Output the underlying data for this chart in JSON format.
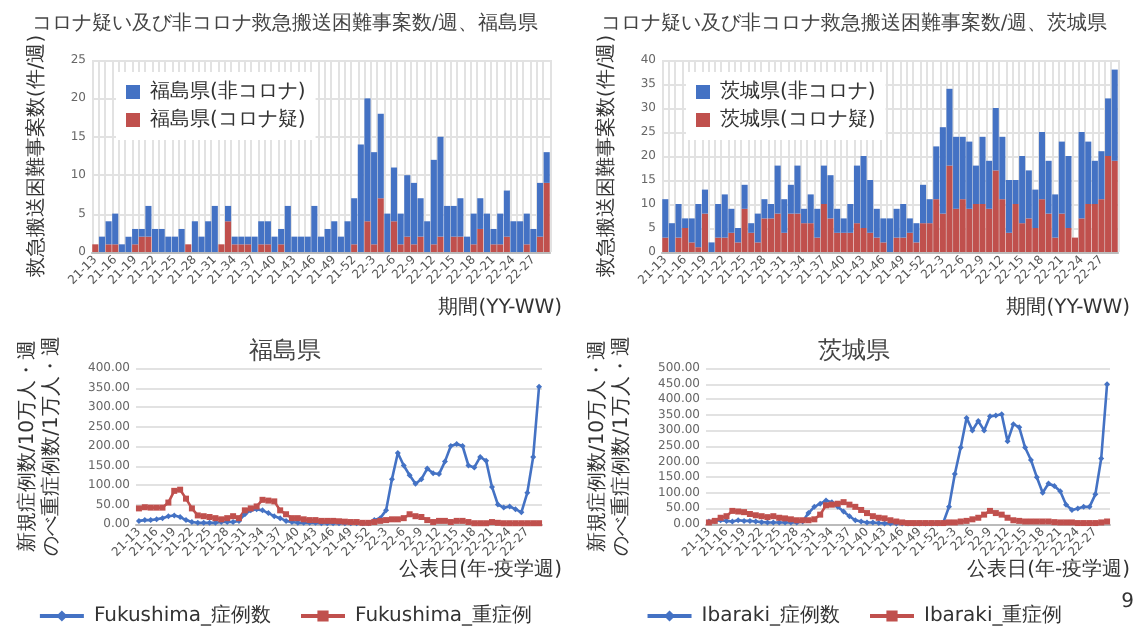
{
  "chart_data": [
    {
      "type": "bar",
      "title": "コロナ疑い及び非コロナ救急搬送困難事案数/週、福島県",
      "xlabel": "期間(YY-WW)",
      "ylabel": "救急搬送困難事案数(件/週)",
      "stacked": true,
      "grid": true,
      "legend": "top left",
      "categories": [
        "21-13",
        null,
        null,
        "21-16",
        null,
        null,
        "21-19",
        null,
        null,
        "21-22",
        null,
        null,
        "21-25",
        null,
        null,
        "21-28",
        null,
        null,
        "21-31",
        null,
        null,
        "21-34",
        null,
        null,
        "21-37",
        null,
        null,
        "21-40",
        null,
        null,
        "21-43",
        null,
        null,
        "21-46",
        null,
        null,
        "21-49",
        null,
        null,
        "21-52",
        null,
        null,
        "22-3",
        null,
        null,
        "22-6",
        null,
        null,
        "22-9",
        null,
        null,
        "22-12",
        null,
        null,
        "22-15",
        null,
        null,
        "22-18",
        null,
        null,
        "22-21",
        null,
        null,
        "22-24",
        null,
        null,
        "22-27",
        null,
        null
      ],
      "ylim": [
        0,
        25
      ],
      "yticks": [
        0,
        5,
        10,
        15,
        20,
        25
      ],
      "series": [
        {
          "name": "福島県(コロナ疑)",
          "color": "#c0504d",
          "values": [
            1,
            0,
            1,
            1,
            0,
            0,
            1,
            2,
            2,
            0,
            0,
            0,
            0,
            0,
            1,
            0,
            0,
            0,
            0,
            1,
            4,
            1,
            1,
            1,
            0,
            1,
            1,
            0,
            1,
            0,
            0,
            0,
            0,
            0,
            0,
            0,
            0,
            0,
            0,
            1,
            0,
            4,
            1,
            7,
            0,
            4,
            1,
            2,
            1,
            2,
            0,
            1,
            2,
            0,
            2,
            2,
            0,
            1,
            3,
            0,
            1,
            1,
            2,
            0,
            0,
            1,
            0,
            2,
            9
          ]
        },
        {
          "name": "福島県(非コロナ)",
          "color": "#4472c4",
          "values": [
            0,
            2,
            3,
            4,
            1,
            2,
            2,
            1,
            4,
            3,
            3,
            2,
            2,
            3,
            0,
            4,
            2,
            4,
            6,
            0,
            2,
            1,
            1,
            1,
            2,
            3,
            3,
            2,
            2,
            6,
            2,
            2,
            2,
            6,
            2,
            3,
            4,
            2,
            4,
            6,
            14,
            16,
            12,
            11,
            5,
            7,
            4,
            8,
            8,
            5,
            4,
            11,
            13,
            6,
            4,
            5,
            2,
            4,
            4,
            5,
            2,
            4,
            6,
            4,
            4,
            4,
            3,
            7,
            4
          ]
        }
      ]
    },
    {
      "type": "bar",
      "title": "コロナ疑い及び非コロナ救急搬送困難事案数/週、茨城県",
      "xlabel": "期間(YY-WW)",
      "ylabel": "救急搬送困難事案数(件/週)",
      "stacked": true,
      "grid": true,
      "legend": "top left",
      "categories": [
        "21-13",
        null,
        null,
        "21-16",
        null,
        null,
        "21-19",
        null,
        null,
        "21-22",
        null,
        null,
        "21-25",
        null,
        null,
        "21-28",
        null,
        null,
        "21-31",
        null,
        null,
        "21-34",
        null,
        null,
        "21-37",
        null,
        null,
        "21-40",
        null,
        null,
        "21-43",
        null,
        null,
        "21-46",
        null,
        null,
        "21-49",
        null,
        null,
        "21-52",
        null,
        null,
        "22-3",
        null,
        null,
        "22-6",
        null,
        null,
        "22-9",
        null,
        null,
        "22-12",
        null,
        null,
        "22-15",
        null,
        null,
        "22-18",
        null,
        null,
        "22-21",
        null,
        null,
        "22-24",
        null,
        null,
        "22-27",
        null,
        null
      ],
      "ylim": [
        0,
        40
      ],
      "yticks": [
        0,
        5,
        10,
        15,
        20,
        25,
        30,
        35,
        40
      ],
      "series": [
        {
          "name": "茨城県(コロナ疑)",
          "color": "#c0504d",
          "values": [
            3,
            0,
            3,
            5,
            2,
            1,
            8,
            0,
            3,
            3,
            4,
            2,
            9,
            4,
            2,
            7,
            7,
            8,
            4,
            8,
            8,
            6,
            6,
            3,
            10,
            7,
            4,
            4,
            4,
            6,
            5,
            4,
            3,
            2,
            0,
            3,
            3,
            4,
            2,
            6,
            6,
            11,
            8,
            18,
            9,
            11,
            9,
            10,
            10,
            9,
            17,
            11,
            4,
            10,
            6,
            7,
            5,
            11,
            8,
            3,
            8,
            5,
            3,
            7,
            10,
            10,
            11,
            20,
            19
          ]
        },
        {
          "name": "茨城県(非コロナ)",
          "color": "#4472c4",
          "values": [
            8,
            6,
            7,
            2,
            5,
            9,
            5,
            2,
            7,
            9,
            5,
            3,
            5,
            2,
            6,
            4,
            3,
            10,
            7,
            6,
            10,
            3,
            6,
            6,
            8,
            9,
            5,
            3,
            6,
            12,
            15,
            11,
            6,
            5,
            7,
            6,
            7,
            3,
            4,
            8,
            5,
            11,
            18,
            16,
            15,
            13,
            14,
            8,
            14,
            10,
            13,
            13,
            11,
            5,
            14,
            10,
            8,
            14,
            11,
            9,
            15,
            15,
            0,
            18,
            13,
            9,
            10,
            12,
            19
          ]
        }
      ]
    },
    {
      "type": "line",
      "title": "福島県",
      "xlabel": "公表日(年-疫学週)",
      "ylabel": "新規症例数/10万人・週のべ重症例数/1万人・週",
      "grid": "y",
      "legend": "bottom",
      "categories": [
        "21-13",
        null,
        null,
        "21-16",
        null,
        null,
        "21-19",
        null,
        null,
        "21-22",
        null,
        null,
        "21-25",
        null,
        null,
        "21-28",
        null,
        null,
        "21-31",
        null,
        null,
        "21-34",
        null,
        null,
        "21-37",
        null,
        null,
        "21-40",
        null,
        null,
        "21-43",
        null,
        null,
        "21-46",
        null,
        null,
        "21-49",
        null,
        null,
        "21-52",
        null,
        null,
        "22-3",
        null,
        null,
        "22-6",
        null,
        null,
        "22-9",
        null,
        null,
        "22-12",
        null,
        null,
        "22-15",
        null,
        null,
        "22-18",
        null,
        null,
        "22-21",
        null,
        null,
        "22-24",
        null,
        null,
        "22-27",
        null,
        null
      ],
      "ylim": [
        0,
        400
      ],
      "yticks": [
        {
          "value": 0,
          "label": "0.00"
        },
        {
          "value": 50,
          "label": "50.00"
        },
        {
          "value": 100,
          "label": "100.00"
        },
        {
          "value": 150,
          "label": "150.00"
        },
        {
          "value": 200,
          "label": "200.00"
        },
        {
          "value": 250,
          "label": "250.00"
        },
        {
          "value": 300,
          "label": "300.00"
        },
        {
          "value": 350,
          "label": "350.00"
        },
        {
          "value": 400,
          "label": "400.00"
        }
      ],
      "series": [
        {
          "name": "Fukushima_症例数",
          "color": "#4472c4",
          "marker": "diamond",
          "values": [
            8,
            10,
            10,
            12,
            15,
            20,
            22,
            18,
            10,
            5,
            3,
            3,
            3,
            3,
            5,
            5,
            5,
            8,
            25,
            35,
            38,
            35,
            28,
            20,
            15,
            8,
            5,
            3,
            3,
            3,
            3,
            2,
            2,
            2,
            2,
            2,
            2,
            2,
            2,
            2,
            10,
            15,
            35,
            115,
            182,
            150,
            125,
            103,
            115,
            142,
            130,
            128,
            160,
            200,
            205,
            200,
            150,
            145,
            172,
            162,
            95,
            50,
            42,
            45,
            38,
            30,
            80,
            172,
            352
          ]
        },
        {
          "name": "Fukushima_重症例",
          "color": "#c0504d",
          "marker": "square",
          "values": [
            40,
            43,
            42,
            42,
            42,
            55,
            85,
            88,
            65,
            40,
            22,
            20,
            18,
            15,
            12,
            15,
            20,
            15,
            35,
            40,
            45,
            62,
            60,
            58,
            35,
            25,
            15,
            15,
            12,
            10,
            10,
            8,
            8,
            8,
            7,
            6,
            5,
            5,
            3,
            3,
            5,
            8,
            10,
            12,
            12,
            15,
            25,
            20,
            18,
            10,
            5,
            8,
            8,
            5,
            8,
            8,
            5,
            2,
            2,
            2,
            5,
            3,
            2,
            2,
            2,
            2,
            2,
            2,
            2
          ]
        }
      ]
    },
    {
      "type": "line",
      "title": "茨城県",
      "xlabel": "公表日(年-疫学週)",
      "ylabel": "新規症例数/10万人・週のべ重症例数/1万人・週",
      "grid": "y",
      "legend": "bottom",
      "annotations": [
        "9"
      ],
      "categories": [
        "21-13",
        null,
        null,
        "21-16",
        null,
        null,
        "21-19",
        null,
        null,
        "21-22",
        null,
        null,
        "21-25",
        null,
        null,
        "21-28",
        null,
        null,
        "21-31",
        null,
        null,
        "21-34",
        null,
        null,
        "21-37",
        null,
        null,
        "21-40",
        null,
        null,
        "21-43",
        null,
        null,
        "21-46",
        null,
        null,
        "21-49",
        null,
        null,
        "21-52",
        null,
        null,
        "22-3",
        null,
        null,
        "22-6",
        null,
        null,
        "22-9",
        null,
        null,
        "22-12",
        null,
        null,
        "22-15",
        null,
        null,
        "22-18",
        null,
        null,
        "22-21",
        null,
        null,
        "22-24",
        null,
        null,
        "22-27",
        null,
        null
      ],
      "ylim": [
        0,
        500
      ],
      "yticks": [
        {
          "value": 0,
          "label": "0.00"
        },
        {
          "value": 50,
          "label": "50.00"
        },
        {
          "value": 100,
          "label": "100.00"
        },
        {
          "value": 150,
          "label": "150.00"
        },
        {
          "value": 200,
          "label": "200.00"
        },
        {
          "value": 250,
          "label": "250.00"
        },
        {
          "value": 300,
          "label": "300.00"
        },
        {
          "value": 350,
          "label": "350.00"
        },
        {
          "value": 400,
          "label": "400.00"
        },
        {
          "value": 450,
          "label": "450.00"
        },
        {
          "value": 500,
          "label": "500.00"
        }
      ],
      "series": [
        {
          "name": "Ibaraki_症例数",
          "color": "#4472c4",
          "marker": "diamond",
          "values": [
            8,
            10,
            12,
            10,
            8,
            12,
            10,
            10,
            8,
            6,
            5,
            5,
            5,
            5,
            5,
            5,
            8,
            35,
            55,
            65,
            75,
            70,
            55,
            40,
            25,
            12,
            8,
            5,
            5,
            3,
            2,
            2,
            2,
            2,
            2,
            2,
            2,
            2,
            2,
            2,
            3,
            55,
            160,
            245,
            340,
            300,
            330,
            300,
            345,
            348,
            352,
            265,
            320,
            310,
            245,
            205,
            150,
            100,
            130,
            122,
            105,
            62,
            45,
            50,
            55,
            55,
            95,
            210,
            448
          ]
        },
        {
          "name": "Ibaraki_重症例",
          "color": "#c0504d",
          "marker": "square",
          "values": [
            5,
            10,
            20,
            25,
            42,
            40,
            38,
            32,
            28,
            25,
            22,
            25,
            20,
            18,
            15,
            12,
            12,
            12,
            15,
            30,
            60,
            62,
            65,
            70,
            62,
            55,
            45,
            35,
            25,
            20,
            18,
            12,
            8,
            5,
            3,
            3,
            3,
            3,
            3,
            3,
            3,
            5,
            5,
            8,
            10,
            15,
            20,
            30,
            42,
            35,
            30,
            20,
            12,
            10,
            8,
            8,
            8,
            8,
            8,
            6,
            5,
            5,
            5,
            3,
            3,
            3,
            3,
            5,
            8
          ]
        }
      ]
    }
  ]
}
